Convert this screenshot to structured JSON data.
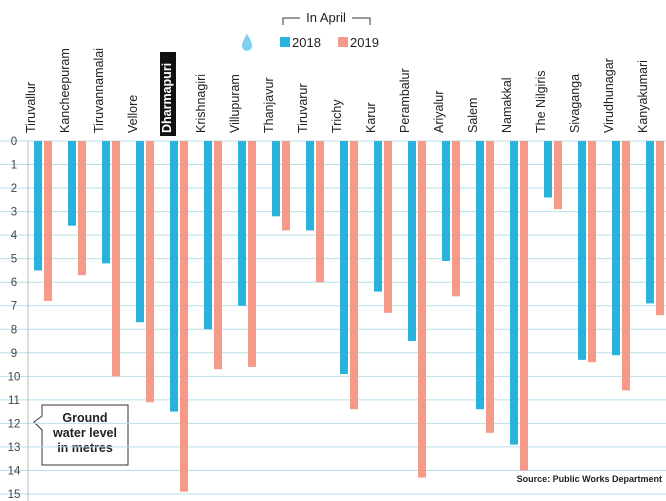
{
  "chart_data": {
    "type": "bar",
    "legend_title": "In April",
    "annotation": "Ground water level in metres",
    "source": "Source: Public Works Department",
    "categories": [
      "Tiruvallur",
      "Kancheepuram",
      "Tiruvannamalai",
      "Vellore",
      "Dharmapuri",
      "Krishnagiri",
      "Villupuram",
      "Thanjavur",
      "Tiruvarur",
      "Trichy",
      "Karur",
      "Perambalur",
      "Ariyalur",
      "Salem",
      "Namakkal",
      "The Nilgiris",
      "Sivaganga",
      "Virudhunagar",
      "Kanyakumari"
    ],
    "series": [
      {
        "name": "2018",
        "color": "#29b3dc",
        "values": [
          5.5,
          3.6,
          5.2,
          7.7,
          11.5,
          8.0,
          7.0,
          3.2,
          3.8,
          9.9,
          6.4,
          8.5,
          5.1,
          11.4,
          12.9,
          2.4,
          9.3,
          9.1,
          6.9
        ]
      },
      {
        "name": "2019",
        "color": "#f59a88",
        "values": [
          6.8,
          5.7,
          10.0,
          11.1,
          14.9,
          9.7,
          9.6,
          3.8,
          6.0,
          11.4,
          7.3,
          14.3,
          6.6,
          12.4,
          14.0,
          2.9,
          9.4,
          10.6,
          7.4
        ]
      }
    ],
    "ylim": [
      0,
      15
    ],
    "yticks": [
      0,
      1,
      2,
      3,
      4,
      5,
      6,
      7,
      8,
      9,
      10,
      11,
      12,
      13,
      14,
      15
    ],
    "inverted": true,
    "grid": true
  }
}
